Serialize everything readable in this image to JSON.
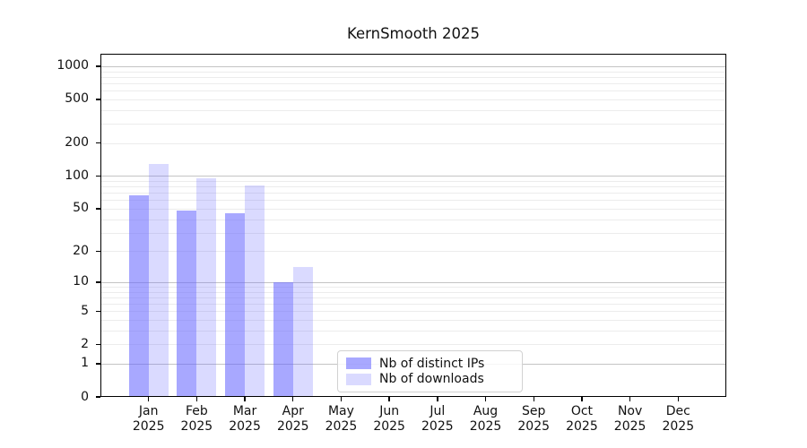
{
  "chart_data": {
    "type": "bar",
    "title": "KernSmooth 2025",
    "categories": [
      "Jan",
      "Feb",
      "Mar",
      "Apr",
      "May",
      "Jun",
      "Jul",
      "Aug",
      "Sep",
      "Oct",
      "Nov",
      "Dec"
    ],
    "category_year": "2025",
    "series": [
      {
        "name": "Nb of distinct IPs",
        "color": "#6666ff91",
        "values": [
          67,
          48,
          45,
          10,
          0,
          0,
          0,
          0,
          0,
          0,
          0,
          0
        ]
      },
      {
        "name": "Nb of downloads",
        "color": "#6666ff3d",
        "values": [
          130,
          95,
          82,
          14,
          0,
          0,
          0,
          0,
          0,
          0,
          0,
          0
        ]
      }
    ],
    "y_ticks": [
      0,
      1,
      2,
      5,
      10,
      20,
      50,
      100,
      200,
      500,
      1000
    ],
    "y_scale": "log10(1+v)",
    "ylim": [
      0,
      1300
    ],
    "xlabel": "",
    "ylabel": "",
    "grid": true,
    "legend_position": "lower center",
    "colors": {
      "background": "#ffffff",
      "major_grid": "#c4c4c4",
      "minor_grid": "#ececec",
      "spine": "#000000"
    }
  }
}
